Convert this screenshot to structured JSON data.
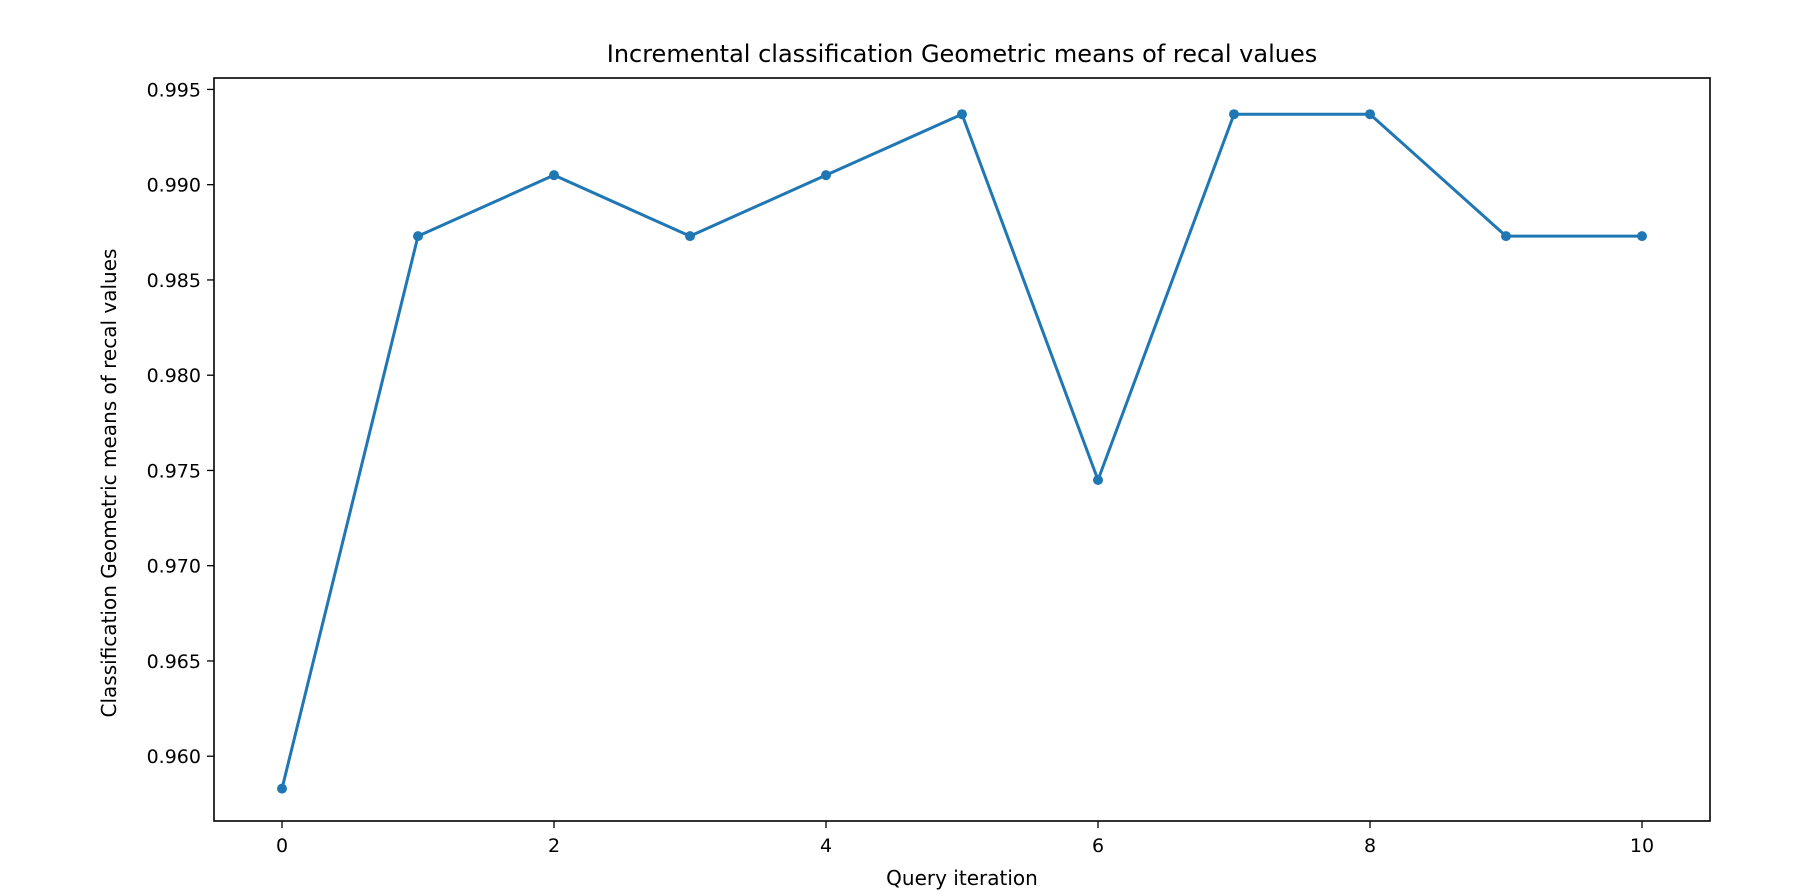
{
  "chart_data": {
    "type": "line",
    "title": "Incremental classification Geometric means of recal values",
    "xlabel": "Query iteration",
    "ylabel": "Classification Geometric means of recal values",
    "x": [
      0,
      1,
      2,
      3,
      4,
      5,
      6,
      7,
      8,
      9,
      10
    ],
    "series": [
      {
        "values": [
          0.9583,
          0.9873,
          0.9905,
          0.9873,
          0.9905,
          0.9937,
          0.9745,
          0.9937,
          0.9937,
          0.9873,
          0.9873
        ]
      }
    ],
    "xlim": [
      -0.5,
      10.5
    ],
    "ylim": [
      0.9566,
      0.9956
    ],
    "xticks": [
      0,
      2,
      4,
      6,
      8,
      10
    ],
    "xtick_labels": [
      "0",
      "2",
      "4",
      "6",
      "8",
      "10"
    ],
    "yticks": [
      0.96,
      0.965,
      0.97,
      0.975,
      0.98,
      0.985,
      0.99,
      0.995
    ],
    "ytick_labels": [
      "0.960",
      "0.965",
      "0.970",
      "0.975",
      "0.980",
      "0.985",
      "0.990",
      "0.995"
    ],
    "grid": false,
    "legend": "none",
    "colors": {
      "line": "#1f77b4",
      "axes": "#000000"
    }
  }
}
